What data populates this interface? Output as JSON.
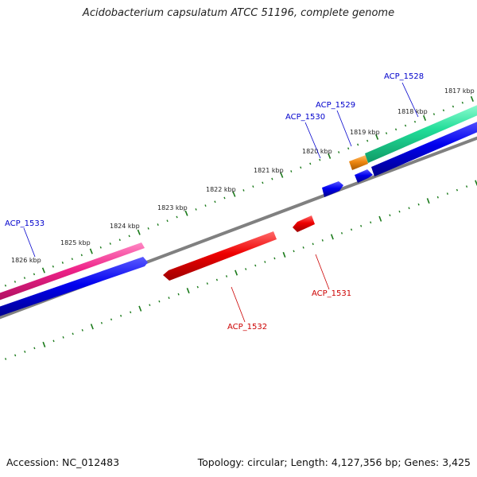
{
  "title": "Acidobacterium capsulatum ATCC 51196, complete genome",
  "footer": {
    "accession": "Accession: NC_012483",
    "summary": "Topology: circular; Length: 4,127,356 bp; Genes: 3,425"
  },
  "colors": {
    "forward_label": "#0000cc",
    "reverse_label": "#cc0000",
    "backbone": "#808080",
    "tick": "#1a7a1a"
  },
  "kbp_labels": [
    "1817 kbp",
    "1818 kbp",
    "1819 kbp",
    "1820 kbp",
    "1821 kbp",
    "1822 kbp",
    "1823 kbp",
    "1824 kbp",
    "1825 kbp",
    "1826 kbp"
  ],
  "genes": [
    {
      "id": "ACP_1528",
      "strand": "forward",
      "color": "#22dd99"
    },
    {
      "id": "ACP_1529",
      "strand": "forward",
      "color": "#ee8811"
    },
    {
      "id": "ACP_1530",
      "strand": "forward",
      "color": "#0000ee"
    },
    {
      "id": "ACP_1531",
      "strand": "reverse",
      "color": "#ee0000"
    },
    {
      "id": "ACP_1532",
      "strand": "reverse",
      "color": "#ee0000"
    },
    {
      "id": "ACP_1533",
      "strand": "forward",
      "color": "#ee2288"
    }
  ]
}
